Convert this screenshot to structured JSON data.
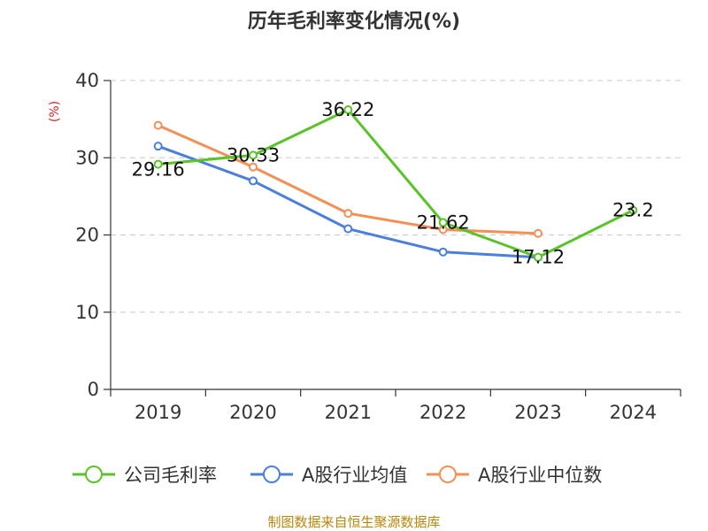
{
  "chart_data": {
    "type": "line",
    "title": "历年毛利率变化情况(%)",
    "ylabel": "(%)",
    "xlabel": "",
    "categories": [
      "2019",
      "2020",
      "2021",
      "2022",
      "2023",
      "2024"
    ],
    "ylim": [
      0,
      40
    ],
    "yticks": [
      0,
      10,
      20,
      30,
      40
    ],
    "grid": "horizontal-dashed",
    "legend_position": "bottom",
    "series": [
      {
        "name": "公司毛利率",
        "color": "#5ac32a",
        "values": [
          29.16,
          30.33,
          36.22,
          21.62,
          17.12,
          23.2
        ],
        "labels": [
          "29.16",
          "30.33",
          "36.22",
          "21.62",
          "17.12",
          "23.2"
        ]
      },
      {
        "name": "A股行业均值",
        "color": "#4a7fdc",
        "values": [
          31.5,
          27.0,
          20.8,
          17.8,
          17.1,
          null
        ]
      },
      {
        "name": "A股行业中位数",
        "color": "#f39056",
        "values": [
          34.2,
          28.8,
          22.8,
          20.7,
          20.2,
          null
        ]
      }
    ]
  },
  "source_text": "制图数据来自恒生聚源数据库"
}
